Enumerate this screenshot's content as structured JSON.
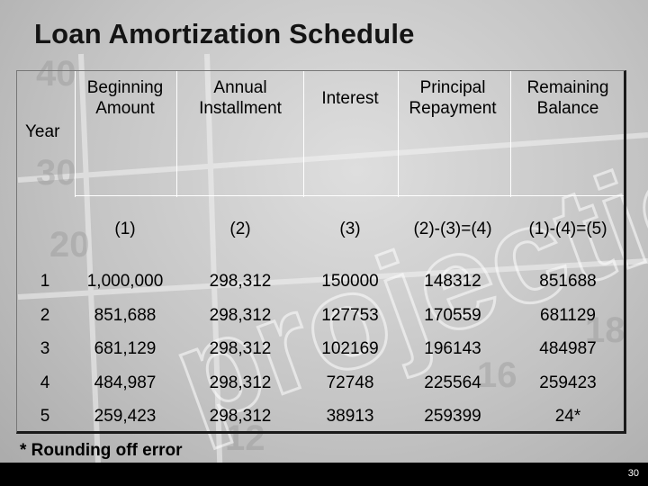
{
  "title": "Loan Amortization Schedule",
  "year_label": "Year",
  "headers": [
    {
      "line1": "Beginning",
      "line2": "Amount",
      "code": "(1)"
    },
    {
      "line1": "Annual",
      "line2": "Installment",
      "code": "(2)"
    },
    {
      "line1": "Interest",
      "line2": "",
      "code": "(3)"
    },
    {
      "line1": "Principal",
      "line2": "Repayment",
      "code": "(2)-(3)=(4)"
    },
    {
      "line1": "Remaining",
      "line2": "Balance",
      "code": "(1)-(4)=(5)"
    }
  ],
  "rows": [
    {
      "year": "1",
      "beginning": "1,000,000",
      "installment": "298,312",
      "interest": "150000",
      "principal": "148312",
      "balance": "851688"
    },
    {
      "year": "2",
      "beginning": "851,688",
      "installment": "298,312",
      "interest": "127753",
      "principal": "170559",
      "balance": "681129"
    },
    {
      "year": "3",
      "beginning": "681,129",
      "installment": "298,312",
      "interest": "102169",
      "principal": "196143",
      "balance": "484987"
    },
    {
      "year": "4",
      "beginning": "484,987",
      "installment": "298,312",
      "interest": "72748",
      "principal": "225564",
      "balance": "259423"
    },
    {
      "year": "5",
      "beginning": "259,423",
      "installment": "298,312",
      "interest": "38913",
      "principal": "259399",
      "balance": "24*"
    }
  ],
  "footnote": "* Rounding off error",
  "page_number": "30"
}
